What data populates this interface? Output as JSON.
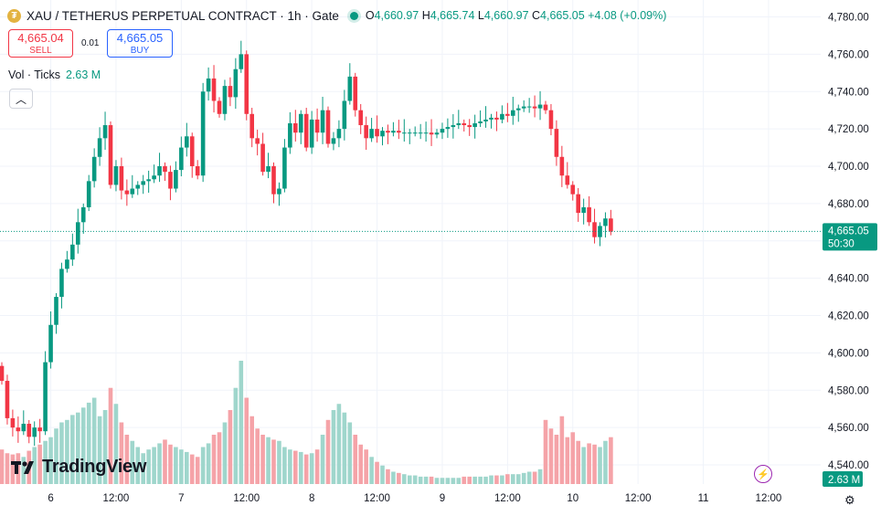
{
  "header": {
    "coin_glyph": "₮",
    "title": "XAU / TETHERUS PERPETUAL CONTRACT · 1h · Gate",
    "o_label": "O",
    "o_value": "4,660.97",
    "h_label": "H",
    "h_value": "4,665.74",
    "l_label": "L",
    "l_value": "4,660.97",
    "c_label": "C",
    "c_value": "4,665.05",
    "change": "+4.08 (+0.09%)"
  },
  "trade": {
    "sell_price": "4,665.04",
    "sell_label": "SELL",
    "spread": "0.01",
    "buy_price": "4,665.05",
    "buy_label": "BUY"
  },
  "volume_legend": {
    "label": "Vol · Ticks",
    "value": "2.63 M"
  },
  "collapse_glyph": "︿",
  "branding": {
    "logo_text": "TradingView"
  },
  "colors": {
    "up": "#089981",
    "down": "#f23645",
    "up_vol": "#9fd6cc",
    "down_vol": "#f5a3a8",
    "price_tag": "#089981",
    "vol_tag": "#089981"
  },
  "chart_data": {
    "type": "candlestick",
    "ylim": [
      4530,
      4790
    ],
    "y_ticks": [
      "4,540.00",
      "4,560.00",
      "4,580.00",
      "4,600.00",
      "4,620.00",
      "4,640.00",
      "4,660.00",
      "4,680.00",
      "4,700.00",
      "4,720.00",
      "4,740.00",
      "4,760.00",
      "4,780.00"
    ],
    "y_tick_values": [
      4540,
      4560,
      4580,
      4600,
      4620,
      4640,
      4660,
      4680,
      4700,
      4720,
      4740,
      4760,
      4780
    ],
    "x_ticks": [
      {
        "label": "6",
        "idx": 9
      },
      {
        "label": "12:00",
        "idx": 21
      },
      {
        "label": "7",
        "idx": 33
      },
      {
        "label": "12:00",
        "idx": 45
      },
      {
        "label": "8",
        "idx": 57
      },
      {
        "label": "12:00",
        "idx": 69
      },
      {
        "label": "9",
        "idx": 81
      },
      {
        "label": "12:00",
        "idx": 93
      },
      {
        "label": "10",
        "idx": 105
      },
      {
        "label": "12:00",
        "idx": 117
      },
      {
        "label": "11",
        "idx": 129
      },
      {
        "label": "12:00",
        "idx": 141
      }
    ],
    "last_price": {
      "value": 4665.05,
      "label": "4,665.05",
      "countdown": "50:30"
    },
    "volume_tag": "2.63 M",
    "closes": [
      4585,
      4565,
      4560,
      4558,
      4562,
      4555,
      4560,
      4558,
      4595,
      4615,
      4630,
      4645,
      4650,
      4658,
      4670,
      4678,
      4692,
      4705,
      4715,
      4722,
      4690,
      4700,
      4687,
      4685,
      4688,
      4690,
      4692,
      4693,
      4695,
      4700,
      4697,
      4688,
      4698,
      4710,
      4716,
      4700,
      4695,
      4740,
      4747,
      4735,
      4728,
      4743,
      4737,
      4752,
      4760,
      4728,
      4715,
      4712,
      4697,
      4700,
      4685,
      4688,
      4710,
      4723,
      4718,
      4728,
      4710,
      4725,
      4718,
      4730,
      4712,
      4715,
      4720,
      4735,
      4748,
      4730,
      4722,
      4715,
      4720,
      4716,
      4719,
      4718,
      4719,
      4718,
      4718,
      4718,
      4718,
      4718,
      4718,
      4717,
      4718,
      4720,
      4721,
      4722,
      4723,
      4722,
      4721,
      4723,
      4724,
      4725,
      4726,
      4725,
      4728,
      4727,
      4730,
      4731,
      4732,
      4732,
      4731,
      4733,
      4730,
      4720,
      4705,
      4695,
      4690,
      4685,
      4675,
      4678,
      4670,
      4662,
      4668,
      4672,
      4665
    ],
    "volumes": [
      0.28,
      0.25,
      0.24,
      0.25,
      0.22,
      0.27,
      0.3,
      0.32,
      0.35,
      0.38,
      0.45,
      0.5,
      0.52,
      0.56,
      0.58,
      0.62,
      0.66,
      0.7,
      0.55,
      0.6,
      0.78,
      0.65,
      0.5,
      0.4,
      0.35,
      0.3,
      0.25,
      0.28,
      0.3,
      0.33,
      0.36,
      0.32,
      0.3,
      0.28,
      0.26,
      0.24,
      0.22,
      0.3,
      0.33,
      0.4,
      0.42,
      0.5,
      0.6,
      0.78,
      1.0,
      0.7,
      0.55,
      0.45,
      0.4,
      0.38,
      0.36,
      0.35,
      0.3,
      0.28,
      0.27,
      0.26,
      0.24,
      0.25,
      0.28,
      0.4,
      0.52,
      0.6,
      0.65,
      0.58,
      0.5,
      0.4,
      0.32,
      0.28,
      0.22,
      0.18,
      0.15,
      0.12,
      0.1,
      0.09,
      0.08,
      0.07,
      0.07,
      0.06,
      0.06,
      0.06,
      0.05,
      0.05,
      0.05,
      0.05,
      0.05,
      0.06,
      0.06,
      0.06,
      0.06,
      0.06,
      0.07,
      0.07,
      0.07,
      0.08,
      0.08,
      0.08,
      0.09,
      0.1,
      0.1,
      0.12,
      0.52,
      0.45,
      0.4,
      0.55,
      0.38,
      0.42,
      0.35,
      0.3,
      0.33,
      0.32,
      0.3,
      0.35,
      0.38
    ]
  }
}
